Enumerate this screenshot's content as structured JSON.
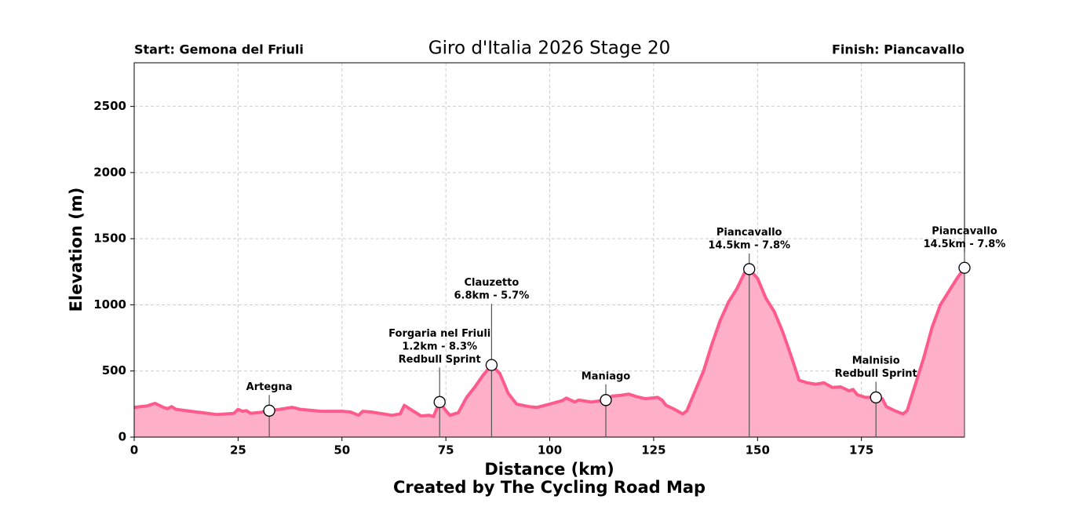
{
  "chart_data": {
    "type": "area",
    "title": "Giro d'Italia 2026 Stage 20",
    "start_label": "Start: Gemona del Friuli",
    "finish_label": "Finish: Piancavallo",
    "x_label": "Distance (km)",
    "y_label": "Elevation (m)",
    "footer": "Created by The Cycling Road Map",
    "line_color": "#ff5a8c",
    "fill_color": "#ffb0c9",
    "grid": true,
    "xlim": [
      0,
      199.8
    ],
    "ylim": [
      0,
      2830
    ],
    "xticks": [
      0,
      25,
      50,
      75,
      100,
      125,
      150,
      175
    ],
    "yticks": [
      0,
      500,
      1000,
      1500,
      2000,
      2500
    ],
    "x": [
      0,
      3,
      5,
      7,
      8,
      9,
      10,
      15,
      20,
      24,
      25,
      26,
      27,
      28,
      30,
      32.5,
      35,
      38,
      40,
      45,
      50,
      52,
      54,
      55,
      57,
      60,
      62,
      64,
      65,
      67,
      69,
      71,
      72,
      73.5,
      75,
      76,
      78,
      80,
      82,
      84,
      86,
      88,
      90,
      92,
      95,
      97,
      100,
      103,
      104,
      106,
      107,
      110,
      113.5,
      115,
      117,
      119,
      121,
      123,
      126,
      127,
      128,
      130,
      132,
      133,
      135,
      137,
      139,
      141,
      143,
      145,
      147,
      148,
      150,
      152,
      154,
      156,
      158,
      160,
      162,
      164,
      166,
      168,
      170,
      172,
      173,
      174,
      176,
      178.5,
      180,
      181,
      183,
      185,
      186,
      188,
      190,
      192,
      194,
      196,
      198,
      199.8
    ],
    "values": [
      225,
      235,
      255,
      225,
      215,
      230,
      210,
      190,
      170,
      180,
      210,
      195,
      200,
      180,
      185,
      200,
      210,
      225,
      210,
      195,
      195,
      190,
      165,
      195,
      190,
      175,
      165,
      175,
      240,
      200,
      160,
      165,
      155,
      265,
      200,
      165,
      185,
      300,
      380,
      470,
      545,
      480,
      330,
      250,
      230,
      225,
      250,
      275,
      295,
      265,
      280,
      265,
      280,
      310,
      315,
      325,
      305,
      290,
      300,
      280,
      240,
      210,
      175,
      200,
      350,
      500,
      700,
      880,
      1020,
      1120,
      1250,
      1270,
      1200,
      1050,
      950,
      800,
      620,
      430,
      410,
      400,
      410,
      375,
      380,
      350,
      360,
      320,
      300,
      300,
      290,
      230,
      200,
      175,
      200,
      400,
      600,
      830,
      1000,
      1100,
      1200,
      1280
    ],
    "annotations": [
      {
        "x": 32.5,
        "y": 200,
        "label": [
          "Artegna"
        ]
      },
      {
        "x": 73.5,
        "y": 265,
        "label": [
          "Forgaria nel Friuli",
          "1.2km - 8.3%",
          "Redbull Sprint"
        ]
      },
      {
        "x": 86,
        "y": 545,
        "label": [
          "Clauzetto",
          "6.8km - 5.7%"
        ]
      },
      {
        "x": 113.5,
        "y": 280,
        "label": [
          "Maniago"
        ]
      },
      {
        "x": 148,
        "y": 1270,
        "label": [
          "Piancavallo",
          "14.5km - 7.8%"
        ]
      },
      {
        "x": 178.5,
        "y": 300,
        "label": [
          "Malnisio",
          "Redbull Sprint"
        ]
      },
      {
        "x": 199.8,
        "y": 1280,
        "label": [
          "Piancavallo",
          "14.5km - 7.8%"
        ]
      }
    ]
  }
}
